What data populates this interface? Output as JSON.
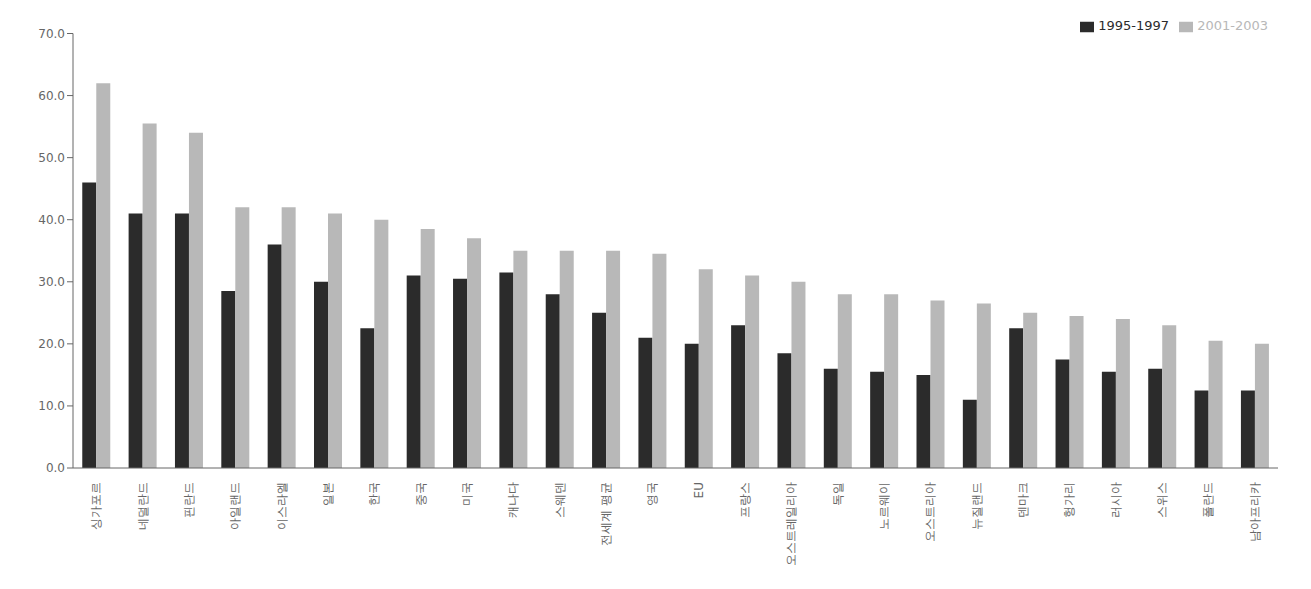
{
  "chart_data": {
    "type": "bar",
    "categories": [
      "싱가포르",
      "네덜란드",
      "핀란드",
      "아일랜드",
      "이스라엘",
      "일본",
      "한국",
      "중국",
      "미국",
      "캐나다",
      "스웨덴",
      "전세계 평균",
      "영국",
      "EU",
      "프랑스",
      "오스트레일리아",
      "독일",
      "노르웨이",
      "오스트리아",
      "뉴질랜드",
      "덴마크",
      "헝가리",
      "러시아",
      "스위스",
      "폴란드",
      "남아프리카"
    ],
    "series": [
      {
        "name": "1995-1997",
        "color": "#2b2b2b",
        "values": [
          46.0,
          41.0,
          41.0,
          28.5,
          36.0,
          30.0,
          22.5,
          31.0,
          30.5,
          31.5,
          28.0,
          25.0,
          21.0,
          20.0,
          23.0,
          18.5,
          16.0,
          15.5,
          15.0,
          11.0,
          22.5,
          17.5,
          15.5,
          16.0,
          12.5,
          12.5
        ]
      },
      {
        "name": "2001-2003",
        "color": "#b8b8b8",
        "values": [
          62.0,
          55.5,
          54.0,
          42.0,
          42.0,
          41.0,
          40.0,
          38.5,
          37.0,
          35.0,
          35.0,
          35.0,
          34.5,
          32.0,
          31.0,
          30.0,
          28.0,
          28.0,
          27.0,
          26.5,
          25.0,
          24.5,
          24.0,
          23.0,
          20.5,
          20.0
        ]
      }
    ],
    "ylim": [
      0,
      70
    ],
    "yticks": [
      {
        "value": 0,
        "label": "0.0"
      },
      {
        "value": 10,
        "label": "10.0"
      },
      {
        "value": 20,
        "label": "20.0"
      },
      {
        "value": 30,
        "label": "30.0"
      },
      {
        "value": 40,
        "label": "40.0"
      },
      {
        "value": 50,
        "label": "50.0"
      },
      {
        "value": 60,
        "label": "60.0"
      },
      {
        "value": 70,
        "label": "70.0"
      }
    ],
    "grid": false,
    "legend": "upper right"
  }
}
